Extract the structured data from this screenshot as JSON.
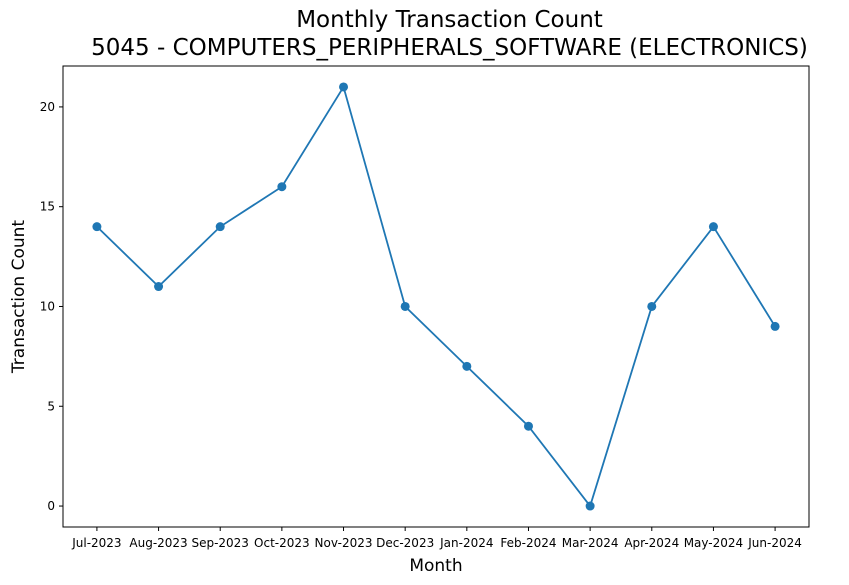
{
  "chart_data": {
    "type": "line",
    "title": "Monthly Transaction Count",
    "subtitle": "5045 - COMPUTERS_PERIPHERALS_SOFTWARE (ELECTRONICS)",
    "xlabel": "Month",
    "ylabel": "Transaction Count",
    "categories": [
      "Jul-2023",
      "Aug-2023",
      "Sep-2023",
      "Oct-2023",
      "Nov-2023",
      "Dec-2023",
      "Jan-2024",
      "Feb-2024",
      "Mar-2024",
      "Apr-2024",
      "May-2024",
      "Jun-2024"
    ],
    "values": [
      14,
      11,
      14,
      16,
      21,
      10,
      7,
      4,
      0,
      10,
      14,
      9
    ],
    "ylim": [
      -1.05,
      22.05
    ],
    "yticks": [
      0,
      5,
      10,
      15,
      20
    ],
    "grid": false,
    "colors": {
      "line": "#1f77b4",
      "marker": "#1f77b4"
    }
  }
}
